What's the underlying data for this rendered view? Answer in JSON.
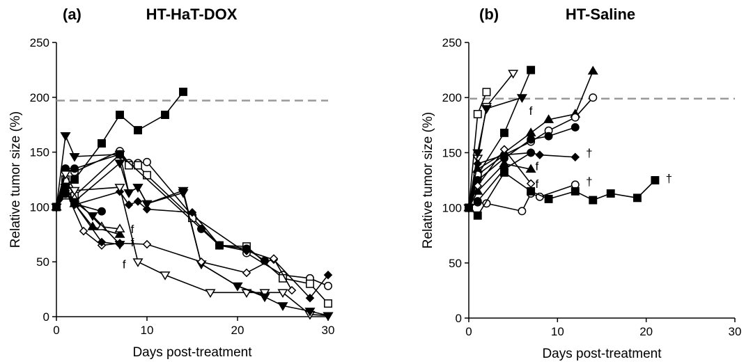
{
  "chart_data": [
    {
      "type": "line",
      "panel_label": "(a)",
      "title": "HT-HaT-DOX",
      "xlabel": "Days post-treatment",
      "ylabel": "Relative tumor size (%)",
      "xlim": [
        0,
        30
      ],
      "ylim": [
        0,
        250
      ],
      "xticks": [
        0,
        10,
        20,
        30
      ],
      "yticks": [
        0,
        50,
        100,
        150,
        200,
        250
      ],
      "threshold": 197,
      "series": [
        {
          "marker": "square-filled",
          "x": [
            0,
            1,
            2,
            5,
            7,
            9,
            12,
            14
          ],
          "y": [
            100,
            120,
            125,
            158,
            184,
            170,
            184,
            205
          ]
        },
        {
          "marker": "triangle-down-filled",
          "x": [
            0,
            1,
            2,
            7,
            8,
            9,
            10,
            14,
            16,
            20,
            23
          ],
          "y": [
            100,
            165,
            146,
            148,
            113,
            118,
            103,
            115,
            48,
            28,
            19
          ]
        },
        {
          "marker": "circle-open",
          "x": [
            0,
            1,
            2,
            7,
            8,
            9,
            10,
            15,
            21,
            25,
            28,
            30
          ],
          "y": [
            100,
            135,
            132,
            151,
            140,
            140,
            141,
            92,
            58,
            38,
            35,
            28
          ]
        },
        {
          "marker": "square-open",
          "x": [
            0,
            1,
            2,
            7,
            8,
            9,
            10,
            15,
            18,
            21,
            25,
            28,
            30
          ],
          "y": [
            100,
            125,
            110,
            148,
            138,
            138,
            129,
            90,
            65,
            64,
            35,
            30,
            12
          ]
        },
        {
          "marker": "circle-filled",
          "x": [
            0,
            1,
            2,
            7,
            16,
            18,
            21,
            23
          ],
          "y": [
            100,
            135,
            135,
            148,
            80,
            65,
            62,
            51
          ]
        },
        {
          "marker": "diamond-filled",
          "x": [
            0,
            1,
            2,
            7,
            8,
            9,
            10,
            15,
            18,
            21,
            24,
            28,
            30
          ],
          "y": [
            100,
            112,
            102,
            114,
            102,
            105,
            98,
            95,
            65,
            60,
            52,
            17,
            38
          ]
        },
        {
          "marker": "triangle-down-open",
          "x": [
            0,
            1,
            2,
            7,
            9,
            12,
            17,
            21,
            23,
            25,
            28,
            30
          ],
          "y": [
            100,
            130,
            115,
            118,
            50,
            38,
            22,
            22,
            22,
            22,
            2,
            1
          ]
        },
        {
          "marker": "triangle-down-filled",
          "x": [
            0,
            1,
            2,
            7,
            8,
            9,
            10,
            14,
            16,
            20,
            23,
            25,
            28,
            30
          ],
          "y": [
            100,
            118,
            105,
            140,
            113,
            118,
            103,
            113,
            48,
            28,
            18,
            10,
            5,
            1
          ]
        },
        {
          "marker": "diamond-open",
          "x": [
            0,
            1,
            3,
            5,
            7,
            10,
            16,
            21,
            24,
            26
          ],
          "y": [
            100,
            115,
            78,
            65,
            67,
            66,
            50,
            40,
            53,
            24
          ]
        },
        {
          "marker": "triangle-up-filled",
          "x": [
            0,
            1,
            2,
            4,
            7
          ],
          "y": [
            100,
            115,
            103,
            82,
            75
          ]
        },
        {
          "marker": "triangle-up-open",
          "x": [
            0,
            1,
            2,
            5,
            7
          ],
          "y": [
            100,
            110,
            108,
            82,
            80
          ]
        },
        {
          "marker": "circle-filled",
          "x": [
            0,
            1,
            2,
            5
          ],
          "y": [
            100,
            112,
            103,
            96
          ]
        },
        {
          "marker": "triangle-down-filled",
          "x": [
            0,
            1,
            2,
            4,
            7
          ],
          "y": [
            100,
            118,
            105,
            92,
            66
          ]
        },
        {
          "marker": "diamond-filled",
          "x": [
            0,
            1,
            2,
            5,
            7
          ],
          "y": [
            100,
            115,
            103,
            68,
            66
          ]
        }
      ],
      "annotations": [
        {
          "text": "f",
          "x": 8.2,
          "y": 80
        },
        {
          "text": "f",
          "x": 8.2,
          "y": 68
        },
        {
          "text": "f",
          "x": 7.3,
          "y": 48
        }
      ]
    },
    {
      "type": "line",
      "panel_label": "(b)",
      "title": "HT-Saline",
      "xlabel": "Days post-treatment",
      "ylabel": "Relative tumor size (%)",
      "xlim": [
        0,
        30
      ],
      "ylim": [
        0,
        250
      ],
      "xticks": [
        0,
        10,
        20,
        30
      ],
      "yticks": [
        0,
        50,
        100,
        150,
        200,
        250
      ],
      "threshold": 199,
      "series": [
        {
          "marker": "square-open",
          "x": [
            0,
            1,
            2
          ],
          "y": [
            100,
            185,
            205
          ]
        },
        {
          "marker": "triangle-down-open",
          "x": [
            0,
            1,
            2,
            5
          ],
          "y": [
            100,
            145,
            192,
            222
          ]
        },
        {
          "marker": "square-filled",
          "x": [
            0,
            1,
            4,
            7
          ],
          "y": [
            100,
            130,
            168,
            225
          ]
        },
        {
          "marker": "triangle-down-filled",
          "x": [
            0,
            1,
            2,
            6
          ],
          "y": [
            100,
            150,
            190,
            200
          ]
        },
        {
          "marker": "triangle-up-filled",
          "x": [
            0,
            1,
            4,
            7,
            9,
            12,
            14
          ],
          "y": [
            100,
            135,
            150,
            168,
            180,
            185,
            224
          ]
        },
        {
          "marker": "circle-open",
          "x": [
            0,
            1,
            4,
            7,
            9,
            12,
            14
          ],
          "y": [
            100,
            130,
            148,
            160,
            170,
            182,
            200
          ]
        },
        {
          "marker": "circle-filled",
          "x": [
            0,
            1,
            4,
            7,
            9,
            12
          ],
          "y": [
            100,
            125,
            145,
            162,
            165,
            173
          ]
        },
        {
          "marker": "diamond-filled",
          "x": [
            0,
            1,
            4,
            7,
            8,
            12
          ],
          "y": [
            100,
            140,
            148,
            150,
            148,
            146
          ]
        },
        {
          "marker": "triangle-up-filled",
          "x": [
            0,
            1,
            4,
            7
          ],
          "y": [
            100,
            115,
            140,
            135
          ]
        },
        {
          "marker": "diamond-open",
          "x": [
            0,
            1,
            4,
            7
          ],
          "y": [
            100,
            120,
            153,
            122
          ]
        },
        {
          "marker": "circle-open",
          "x": [
            0,
            1,
            2,
            6,
            7,
            8,
            12
          ],
          "y": [
            100,
            105,
            104,
            97,
            113,
            110,
            121
          ]
        },
        {
          "marker": "square-filled",
          "x": [
            0,
            1,
            4,
            7,
            9,
            12,
            14,
            16,
            19,
            21
          ],
          "y": [
            100,
            93,
            132,
            115,
            108,
            115,
            107,
            113,
            109,
            125
          ]
        },
        {
          "marker": "circle-filled",
          "x": [
            0,
            1,
            4,
            7
          ],
          "y": [
            100,
            106,
            135,
            150
          ]
        }
      ],
      "annotations": [
        {
          "text": "f",
          "x": 6.8,
          "y": 188
        },
        {
          "text": "†",
          "x": 13.2,
          "y": 150
        },
        {
          "text": "f",
          "x": 7.5,
          "y": 138
        },
        {
          "text": "f",
          "x": 7.5,
          "y": 122
        },
        {
          "text": "†",
          "x": 13.2,
          "y": 124
        },
        {
          "text": "†",
          "x": 22.2,
          "y": 127
        }
      ]
    }
  ]
}
